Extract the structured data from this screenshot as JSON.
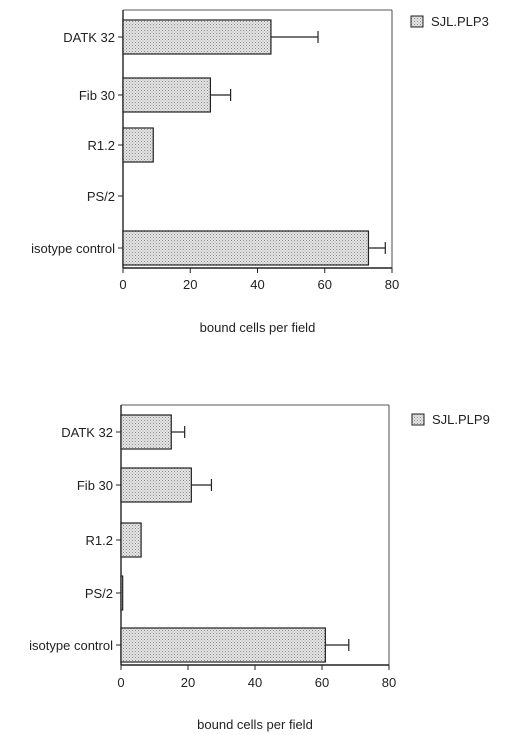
{
  "chart_data": [
    {
      "type": "bar",
      "orientation": "horizontal",
      "categories": [
        "DATK 32",
        "Fib 30",
        "R1.2",
        "PS/2",
        "isotype control"
      ],
      "series": [
        {
          "name": "SJL.PLP3",
          "values": [
            44,
            26,
            9,
            0,
            73
          ],
          "errors": [
            14,
            6,
            0,
            0,
            5
          ]
        }
      ],
      "xlabel": "bound cells per field",
      "xlim": [
        0,
        80
      ],
      "xticks": [
        "0",
        "20",
        "40",
        "60",
        "80"
      ],
      "legend_position": "top-right",
      "grid": false
    },
    {
      "type": "bar",
      "orientation": "horizontal",
      "categories": [
        "DATK 32",
        "Fib 30",
        "R1.2",
        "PS/2",
        "isotype control"
      ],
      "series": [
        {
          "name": "SJL.PLP9",
          "values": [
            15,
            21,
            6,
            0.5,
            61
          ],
          "errors": [
            4,
            6,
            0,
            0,
            7
          ]
        }
      ],
      "xlabel": "bound cells per field",
      "xlim": [
        0,
        80
      ],
      "xticks": [
        "0",
        "20",
        "40",
        "60",
        "80"
      ],
      "legend_position": "top-right",
      "grid": false
    }
  ],
  "colors": {
    "axis": "#222222",
    "bar_fill": "#e6e6e6",
    "bar_stipple": "#8a8a8a"
  }
}
